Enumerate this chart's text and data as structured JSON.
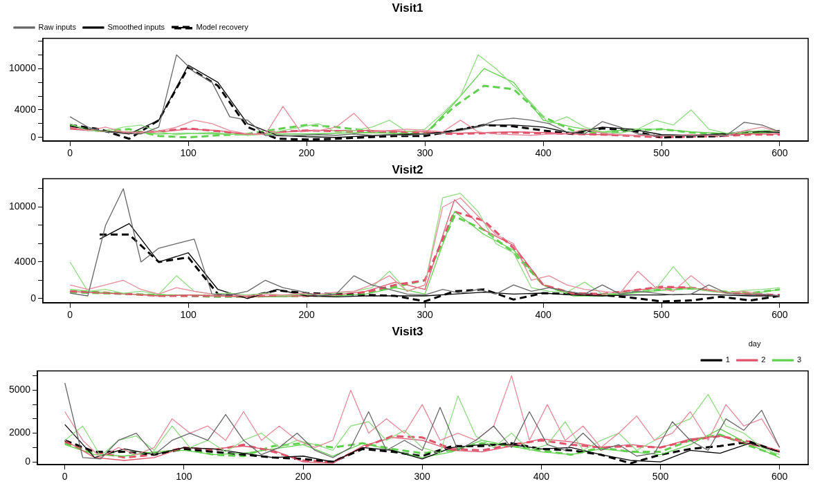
{
  "chart_data": [
    {
      "type": "line",
      "title": "Visit1",
      "x": [
        0,
        25,
        50,
        75,
        100,
        125,
        150,
        175,
        200,
        225,
        250,
        275,
        300,
        325,
        350,
        375,
        400,
        425,
        450,
        475,
        500,
        525,
        550,
        575,
        600
      ],
      "xlim": [
        -23,
        624
      ],
      "xticks": [
        0,
        100,
        200,
        300,
        400,
        500,
        600
      ],
      "ylim": [
        -550,
        14400
      ],
      "yticks": [
        0,
        {
          "value": 2000,
          "label": null
        },
        4000,
        {
          "value": 6000,
          "label": null
        },
        {
          "value": 8000,
          "label": null
        },
        10000,
        {
          "value": 12000,
          "label": null
        },
        {
          "value": 14000,
          "label": null
        }
      ],
      "grid": false,
      "legend": "top left",
      "marker": "none",
      "series": [
        {
          "name": "Raw inputs",
          "color": "#666666",
          "line_style": "solid",
          "x": [
            0,
            15,
            30,
            45,
            60,
            75,
            90,
            105,
            120,
            135,
            150,
            165,
            180,
            195,
            210,
            225,
            240,
            255,
            270,
            285,
            300,
            315,
            330,
            345,
            360,
            375,
            390,
            405,
            420,
            435,
            450,
            465,
            480,
            495,
            510,
            525,
            540,
            555,
            570,
            585,
            600
          ],
          "values": [
            3000,
            1500,
            800,
            600,
            500,
            1500,
            12000,
            9500,
            8000,
            3000,
            2500,
            300,
            200,
            300,
            400,
            300,
            500,
            300,
            400,
            300,
            500,
            600,
            1000,
            1500,
            2500,
            2800,
            2500,
            2000,
            800,
            500,
            2300,
            1500,
            500,
            300,
            300,
            200,
            400,
            300,
            2200,
            1800,
            800
          ]
        },
        {
          "color": "#e8899a",
          "line_style": "solid",
          "x": [
            0,
            15,
            30,
            45,
            60,
            75,
            90,
            105,
            120,
            135,
            150,
            165,
            180,
            195,
            210,
            225,
            240,
            255,
            270,
            285,
            300,
            315,
            330,
            345,
            360,
            375,
            390,
            405,
            420,
            435,
            450,
            465,
            480,
            495,
            510,
            525,
            540,
            555,
            570,
            585,
            600
          ],
          "values": [
            1500,
            1000,
            1500,
            800,
            700,
            900,
            1500,
            2500,
            2000,
            1000,
            500,
            400,
            4500,
            800,
            1000,
            1500,
            3500,
            800,
            1000,
            1200,
            1000,
            800,
            2500,
            800,
            500,
            400,
            300,
            500,
            500,
            1200,
            600,
            400,
            300,
            200,
            300,
            400,
            300,
            200,
            1000,
            1500,
            800
          ]
        },
        {
          "color": "#8fdc82",
          "line_style": "solid",
          "x": [
            0,
            15,
            30,
            45,
            60,
            75,
            90,
            105,
            120,
            135,
            150,
            165,
            180,
            195,
            210,
            225,
            240,
            255,
            270,
            285,
            300,
            315,
            330,
            345,
            360,
            375,
            390,
            405,
            420,
            435,
            450,
            465,
            480,
            495,
            510,
            525,
            540,
            555,
            570,
            585,
            600
          ],
          "values": [
            2000,
            1000,
            900,
            1500,
            1800,
            800,
            400,
            600,
            700,
            500,
            300,
            500,
            1000,
            1500,
            2000,
            800,
            1000,
            1500,
            2500,
            800,
            1200,
            3500,
            6000,
            12000,
            10000,
            7500,
            5000,
            2000,
            3000,
            1500,
            800,
            600,
            1200,
            2500,
            1800,
            4000,
            1200,
            600,
            800,
            1000,
            900
          ]
        },
        {
          "name": "Smoothed inputs",
          "color": "#000000",
          "line_style": "solid",
          "values": [
            1600,
            1000,
            500,
            2500,
            10500,
            8000,
            2000,
            300,
            100,
            0,
            200,
            400,
            500,
            1000,
            1800,
            1800,
            1500,
            600,
            1500,
            1200,
            400,
            300,
            500,
            900,
            700
          ]
        },
        {
          "color": "#df536b",
          "line_style": "solid",
          "values": [
            1200,
            900,
            700,
            800,
            1200,
            1000,
            400,
            700,
            1000,
            1000,
            1000,
            900,
            800,
            600,
            700,
            800,
            700,
            500,
            400,
            300,
            200,
            300,
            300,
            500,
            500
          ]
        },
        {
          "color": "#61d04f",
          "line_style": "solid",
          "values": [
            1800,
            900,
            800,
            500,
            600,
            500,
            400,
            500,
            500,
            600,
            700,
            600,
            500,
            5000,
            10000,
            8000,
            2500,
            1500,
            800,
            1200,
            1200,
            800,
            600,
            600,
            800
          ]
        },
        {
          "name": "Model recovery",
          "color": "#000000",
          "line_style": "dashed",
          "values": [
            1800,
            1200,
            -200,
            2500,
            10200,
            7500,
            1500,
            -200,
            -300,
            -200,
            0,
            200,
            200,
            1000,
            1800,
            1600,
            1000,
            500,
            1300,
            1000,
            0,
            100,
            200,
            800,
            900
          ]
        },
        {
          "color": "#df536b",
          "line_style": "dashed",
          "values": [
            1400,
            1000,
            600,
            900,
            1300,
            900,
            400,
            800,
            1000,
            900,
            800,
            700,
            600,
            500,
            600,
            700,
            600,
            500,
            400,
            200,
            0,
            100,
            200,
            400,
            400
          ]
        },
        {
          "color": "#61d04f",
          "line_style": "dashed",
          "values": [
            1600,
            900,
            1200,
            200,
            0,
            300,
            500,
            1200,
            1800,
            1500,
            1000,
            600,
            500,
            4500,
            7500,
            7000,
            3000,
            1000,
            600,
            1000,
            1200,
            700,
            500,
            600,
            900
          ]
        }
      ]
    },
    {
      "type": "line",
      "title": "Visit2",
      "x": [
        0,
        25,
        50,
        75,
        100,
        125,
        150,
        175,
        200,
        225,
        250,
        275,
        300,
        325,
        350,
        375,
        400,
        425,
        450,
        475,
        500,
        525,
        550,
        575,
        600
      ],
      "xlim": [
        -23,
        624
      ],
      "xticks": [
        0,
        100,
        200,
        300,
        400,
        500,
        600
      ],
      "ylim": [
        -470,
        13100
      ],
      "yticks": [
        0,
        {
          "value": 2000,
          "label": null
        },
        4000,
        {
          "value": 6000,
          "label": null
        },
        {
          "value": 8000,
          "label": null
        },
        10000,
        {
          "value": 12000,
          "label": null
        }
      ],
      "grid": false,
      "marker": "none",
      "series": [
        {
          "color": "#666666",
          "line_style": "solid",
          "x": [
            0,
            15,
            30,
            45,
            60,
            75,
            90,
            105,
            120,
            135,
            150,
            165,
            180,
            195,
            210,
            225,
            240,
            255,
            270,
            285,
            300,
            315,
            330,
            345,
            360,
            375,
            390,
            405,
            420,
            435,
            450,
            465,
            480,
            495,
            510,
            525,
            540,
            555,
            570,
            585,
            600
          ],
          "values": [
            600,
            300,
            8000,
            12000,
            4000,
            5500,
            6000,
            6500,
            500,
            400,
            800,
            2000,
            1200,
            800,
            300,
            500,
            2500,
            1500,
            1000,
            500,
            400,
            1000,
            600,
            1000,
            500,
            1500,
            800,
            1200,
            800,
            500,
            1500,
            500,
            800,
            600,
            400,
            500,
            1500,
            600,
            400,
            500,
            300
          ]
        },
        {
          "color": "#e8899a",
          "line_style": "solid",
          "x": [
            0,
            15,
            30,
            45,
            60,
            75,
            90,
            105,
            120,
            135,
            150,
            165,
            180,
            195,
            210,
            225,
            240,
            255,
            270,
            285,
            300,
            315,
            330,
            345,
            360,
            375,
            390,
            405,
            420,
            435,
            450,
            465,
            480,
            495,
            510,
            525,
            540,
            555,
            570,
            585,
            600
          ],
          "values": [
            1500,
            1000,
            1500,
            2000,
            1000,
            500,
            1200,
            800,
            500,
            400,
            300,
            500,
            400,
            600,
            500,
            700,
            800,
            1500,
            2500,
            800,
            1500,
            10000,
            11000,
            9000,
            7000,
            6000,
            2000,
            2500,
            1500,
            1000,
            800,
            600,
            3000,
            1200,
            800,
            2500,
            1000,
            600,
            800,
            500,
            300
          ]
        },
        {
          "color": "#8fdc82",
          "line_style": "solid",
          "x": [
            0,
            15,
            30,
            45,
            60,
            75,
            90,
            105,
            120,
            135,
            150,
            165,
            180,
            195,
            210,
            225,
            240,
            255,
            270,
            285,
            300,
            315,
            330,
            345,
            360,
            375,
            390,
            405,
            420,
            435,
            450,
            465,
            480,
            495,
            510,
            525,
            540,
            555,
            570,
            585,
            600
          ],
          "values": [
            4000,
            800,
            1000,
            600,
            800,
            500,
            2500,
            800,
            500,
            600,
            400,
            600,
            300,
            500,
            400,
            600,
            800,
            1200,
            3000,
            800,
            1500,
            11000,
            11500,
            9500,
            6000,
            5000,
            1200,
            800,
            700,
            1800,
            500,
            600,
            700,
            1000,
            3500,
            1200,
            800,
            600,
            900,
            1000,
            1200
          ]
        },
        {
          "color": "#000000",
          "line_style": "solid",
          "values": [
            null,
            6500,
            8200,
            4000,
            5000,
            1000,
            0,
            1000,
            300,
            200,
            300,
            300,
            300,
            500,
            700,
            500,
            600,
            400,
            300,
            400,
            400,
            500,
            400,
            300,
            300
          ]
        },
        {
          "color": "#df536b",
          "line_style": "solid",
          "values": [
            800,
            600,
            500,
            300,
            400,
            300,
            200,
            300,
            300,
            400,
            800,
            1800,
            1000,
            10800,
            7500,
            5800,
            1500,
            500,
            400,
            900,
            1200,
            1200,
            700,
            500,
            300
          ]
        },
        {
          "color": "#61d04f",
          "line_style": "solid",
          "values": [
            1000,
            700,
            500,
            400,
            400,
            300,
            200,
            200,
            300,
            300,
            500,
            1200,
            500,
            9500,
            7000,
            5300,
            1500,
            300,
            300,
            600,
            900,
            1100,
            800,
            500,
            1000
          ]
        },
        {
          "color": "#000000",
          "line_style": "dashed",
          "values": [
            null,
            7000,
            7000,
            4000,
            4500,
            500,
            200,
            900,
            600,
            500,
            400,
            300,
            -300,
            800,
            1000,
            -100,
            600,
            500,
            400,
            100,
            -300,
            -200,
            200,
            -200,
            300
          ]
        },
        {
          "color": "#df536b",
          "line_style": "dashed",
          "values": [
            800,
            700,
            500,
            300,
            300,
            300,
            200,
            300,
            300,
            400,
            700,
            1500,
            2000,
            9500,
            8500,
            5500,
            1500,
            600,
            500,
            900,
            1300,
            1200,
            700,
            500,
            400
          ]
        },
        {
          "color": "#61d04f",
          "line_style": "dashed",
          "values": [
            700,
            600,
            500,
            400,
            300,
            200,
            200,
            300,
            300,
            400,
            600,
            1300,
            2000,
            9000,
            7500,
            5000,
            1500,
            400,
            400,
            700,
            1000,
            1100,
            800,
            600,
            1000
          ]
        }
      ]
    },
    {
      "type": "line",
      "title": "Visit3",
      "x": [
        0,
        25,
        50,
        75,
        100,
        125,
        150,
        175,
        200,
        225,
        250,
        275,
        300,
        325,
        350,
        375,
        400,
        425,
        450,
        475,
        500,
        525,
        550,
        575,
        600
      ],
      "xlim": [
        -23,
        624
      ],
      "xticks": [
        0,
        100,
        200,
        300,
        400,
        500,
        600
      ],
      "ylim": [
        -200,
        6340
      ],
      "yticks": [
        0,
        {
          "value": 1000,
          "label": null
        },
        2000,
        {
          "value": 3000,
          "label": null
        },
        {
          "value": 4000,
          "label": null
        },
        5000,
        {
          "value": 6000,
          "label": null
        }
      ],
      "grid": false,
      "legend": "top right",
      "legend_title": "day",
      "marker": "none",
      "series": [
        {
          "color": "#666666",
          "line_style": "solid",
          "x": [
            0,
            15,
            30,
            45,
            60,
            75,
            90,
            105,
            120,
            135,
            150,
            165,
            180,
            195,
            210,
            225,
            240,
            255,
            270,
            285,
            300,
            315,
            330,
            345,
            360,
            375,
            390,
            405,
            420,
            435,
            450,
            465,
            480,
            495,
            510,
            525,
            540,
            555,
            570,
            585,
            600
          ],
          "values": [
            5500,
            300,
            200,
            1500,
            2000,
            500,
            1500,
            2000,
            1500,
            3300,
            1500,
            500,
            1000,
            2000,
            800,
            300,
            1000,
            3500,
            800,
            1500,
            800,
            3800,
            800,
            1500,
            2500,
            1000,
            3500,
            1200,
            800,
            2000,
            800,
            1200,
            400,
            600,
            2800,
            1500,
            800,
            3000,
            2200,
            3600,
            1000
          ]
        },
        {
          "color": "#e8899a",
          "line_style": "solid",
          "x": [
            0,
            15,
            30,
            45,
            60,
            75,
            90,
            105,
            120,
            135,
            150,
            165,
            180,
            195,
            210,
            225,
            240,
            255,
            270,
            285,
            300,
            315,
            330,
            345,
            360,
            375,
            390,
            405,
            420,
            435,
            450,
            465,
            480,
            495,
            510,
            525,
            540,
            555,
            570,
            585,
            600
          ],
          "values": [
            3500,
            1500,
            300,
            1000,
            500,
            1000,
            3000,
            2000,
            2500,
            1500,
            3500,
            1500,
            2500,
            1500,
            1000,
            1500,
            5000,
            2000,
            3000,
            2000,
            4000,
            1500,
            2000,
            1500,
            2500,
            6000,
            1500,
            4000,
            1500,
            2500,
            1000,
            2000,
            3200,
            1500,
            2000,
            3500,
            1500,
            4000,
            2500,
            3000,
            1000
          ]
        },
        {
          "color": "#8fdc82",
          "line_style": "solid",
          "x": [
            0,
            15,
            30,
            45,
            60,
            75,
            90,
            105,
            120,
            135,
            150,
            165,
            180,
            195,
            210,
            225,
            240,
            255,
            270,
            285,
            300,
            315,
            330,
            345,
            360,
            375,
            390,
            405,
            420,
            435,
            450,
            465,
            480,
            495,
            510,
            525,
            540,
            555,
            570,
            585,
            600
          ],
          "values": [
            1500,
            2500,
            400,
            1500,
            1800,
            800,
            2500,
            1000,
            1500,
            700,
            1500,
            2000,
            1000,
            1500,
            1200,
            800,
            2500,
            2800,
            1500,
            2200,
            1000,
            600,
            4600,
            1800,
            1000,
            2000,
            800,
            1200,
            2800,
            800,
            1500,
            2000,
            800,
            1500,
            2500,
            3000,
            4700,
            2500,
            2000,
            1000,
            500
          ]
        },
        {
          "name": "1",
          "color": "#000000",
          "line_style": "solid",
          "values": [
            2600,
            300,
            900,
            500,
            1000,
            900,
            600,
            300,
            400,
            0,
            1000,
            800,
            200,
            1000,
            1200,
            1200,
            900,
            1000,
            500,
            100,
            0,
            800,
            600,
            1300,
            700
          ]
        },
        {
          "name": "2",
          "color": "#df536b",
          "line_style": "solid",
          "values": [
            1500,
            300,
            100,
            300,
            1000,
            900,
            1100,
            800,
            0,
            -100,
            1100,
            1700,
            1500,
            800,
            700,
            1100,
            1600,
            1400,
            1000,
            1200,
            1000,
            1600,
            1800,
            1200,
            800
          ]
        },
        {
          "name": "3",
          "color": "#61d04f",
          "line_style": "solid",
          "values": [
            1200,
            500,
            400,
            700,
            800,
            500,
            600,
            900,
            1200,
            400,
            1300,
            800,
            300,
            700,
            1500,
            1100,
            700,
            500,
            900,
            700,
            500,
            1200,
            2300,
            1200,
            300
          ]
        },
        {
          "color": "#000000",
          "line_style": "dashed",
          "values": [
            1500,
            700,
            700,
            500,
            900,
            700,
            500,
            300,
            200,
            0,
            900,
            700,
            400,
            1100,
            1100,
            1300,
            900,
            800,
            500,
            -100,
            500,
            900,
            1100,
            1400,
            700
          ]
        },
        {
          "color": "#df536b",
          "line_style": "dashed",
          "values": [
            1400,
            700,
            300,
            500,
            1000,
            800,
            1200,
            700,
            100,
            0,
            1000,
            1800,
            1700,
            900,
            800,
            1200,
            1500,
            1200,
            1000,
            1100,
            1000,
            1500,
            1800,
            1400,
            700
          ]
        },
        {
          "color": "#61d04f",
          "line_style": "dashed",
          "values": [
            1300,
            600,
            700,
            600,
            900,
            500,
            400,
            1100,
            1300,
            1000,
            1300,
            900,
            600,
            800,
            1300,
            1100,
            800,
            500,
            1000,
            700,
            700,
            1500,
            1900,
            1100,
            400
          ]
        }
      ]
    }
  ]
}
